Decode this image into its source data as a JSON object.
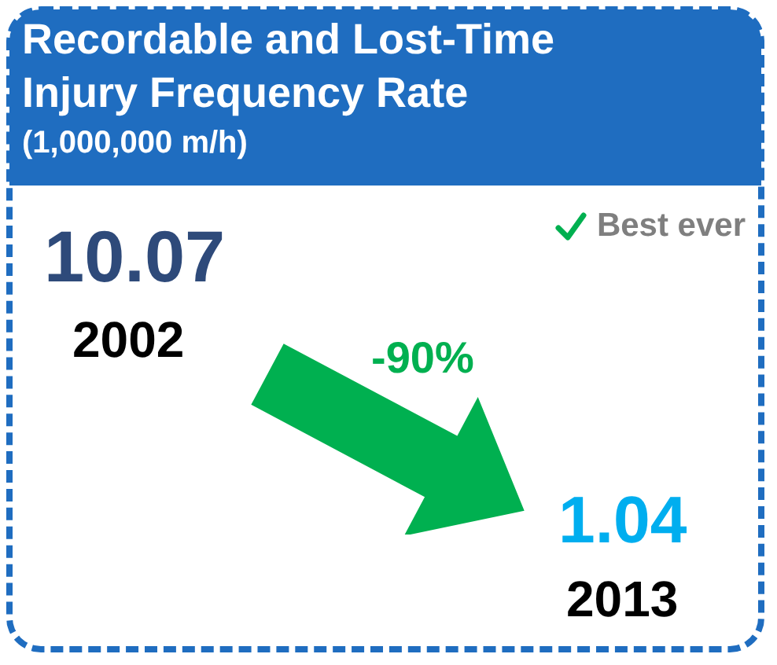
{
  "chart_data": {
    "type": "other",
    "title": "Recordable and Lost-Time Injury Frequency Rate",
    "subtitle": "(1,000,000 m/h)",
    "categories": [
      "2002",
      "2013"
    ],
    "values": [
      10.07,
      1.04
    ],
    "colors": [
      "#2e4a7a",
      "#00aeef"
    ],
    "data_labels": true,
    "annotations": [
      "-90%",
      "Best ever"
    ]
  }
}
